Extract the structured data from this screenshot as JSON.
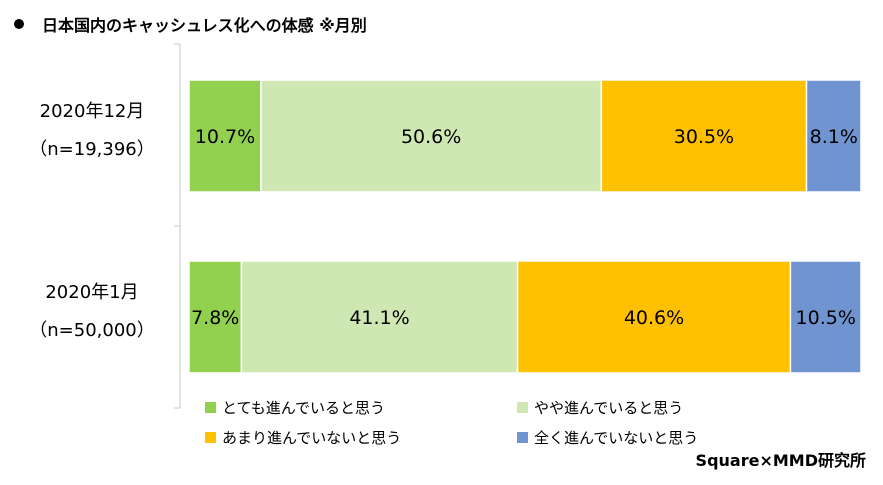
{
  "title": "日本国内のキャッシュレス化への体感 ※月別",
  "credit": "Square×MMD研究所",
  "colors": [
    "#92d050",
    "#cfe7b3",
    "#ffc000",
    "#7094d0"
  ],
  "chart_data": {
    "type": "bar",
    "orientation": "horizontal",
    "stacked": true,
    "percent_stacked": true,
    "categories": [
      {
        "line1": "2020年12月",
        "line2": "（n=19,396）"
      },
      {
        "line1": "2020年1月",
        "line2": "（n=50,000）"
      }
    ],
    "series": [
      {
        "name": "とても進んでいると思う",
        "values": [
          10.7,
          7.8
        ],
        "labels": [
          "10.7%",
          "7.8%"
        ]
      },
      {
        "name": "やや進んでいると思う",
        "values": [
          50.6,
          41.1
        ],
        "labels": [
          "50.6%",
          "41.1%"
        ]
      },
      {
        "name": "あまり進んでいないと思う",
        "values": [
          30.5,
          40.6
        ],
        "labels": [
          "30.5%",
          "40.6%"
        ]
      },
      {
        "name": "全く進んでいないと思う",
        "values": [
          8.1,
          10.5
        ],
        "labels": [
          "8.1%",
          "10.5%"
        ]
      }
    ],
    "legend_position": "bottom",
    "grid": false
  }
}
